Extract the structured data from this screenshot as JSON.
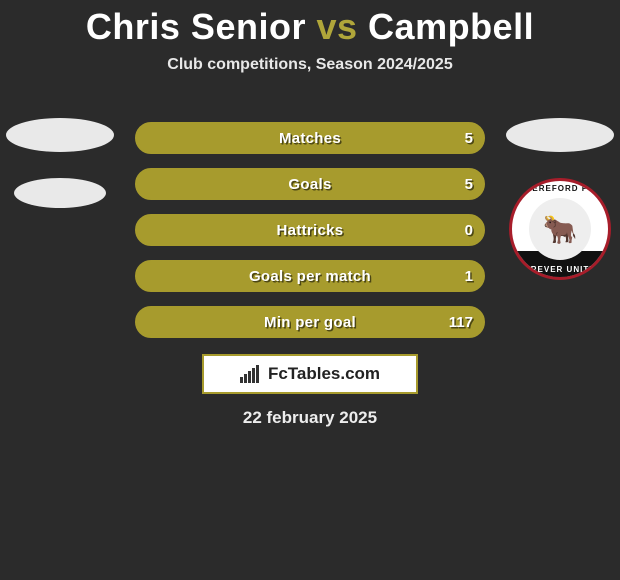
{
  "title": {
    "left": "Chris Senior",
    "mid": "vs",
    "right": "Campbell"
  },
  "subtitle": "Club competitions, Season 2024/2025",
  "accent_color": "#a79b2d",
  "bar_border_color": "#a79b2d",
  "bars": [
    {
      "label": "Matches",
      "left": "",
      "right": "5",
      "fill_pct": 0
    },
    {
      "label": "Goals",
      "left": "",
      "right": "5",
      "fill_pct": 0
    },
    {
      "label": "Hattricks",
      "left": "",
      "right": "0",
      "fill_pct": 0
    },
    {
      "label": "Goals per match",
      "left": "",
      "right": "1",
      "fill_pct": 0
    },
    {
      "label": "Min per goal",
      "left": "",
      "right": "117",
      "fill_pct": 0
    }
  ],
  "brand": "FcTables.com",
  "date": "22 february 2025",
  "crest": {
    "top_text": "HEREFORD FC",
    "bottom_text": "FOREVER UNITED",
    "emoji": "🐂"
  }
}
